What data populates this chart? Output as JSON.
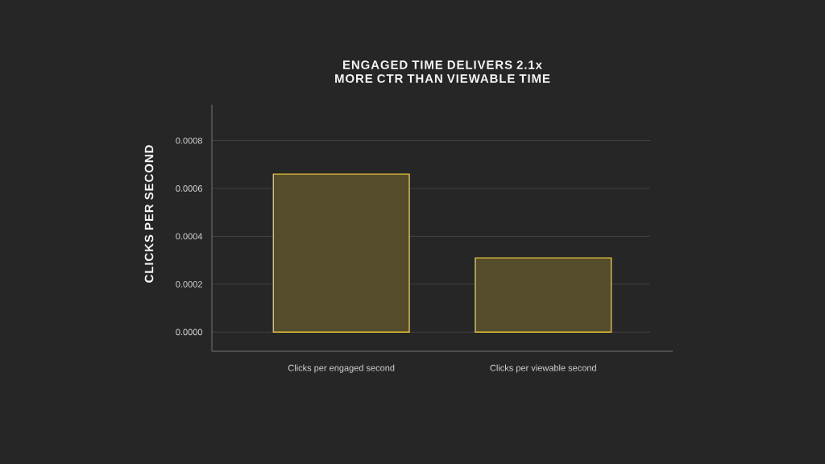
{
  "chart_data": {
    "type": "bar",
    "title": "ENGAGED TIME DELIVERS 2.1x MORE CTR THAN VIEWABLE TIME",
    "ylabel": "CLICKS PER SECOND",
    "categories": [
      "Clicks per engaged second",
      "Clicks per viewable second"
    ],
    "values": [
      0.00066,
      0.00031
    ],
    "color": "#e6c43c",
    "ylim": [
      -8e-05,
      0.00095
    ],
    "yticks": [
      {
        "value": 0,
        "label": "0.0000"
      },
      0.0002,
      0.0004,
      0.0006,
      0.0008
    ],
    "grid": "y"
  }
}
